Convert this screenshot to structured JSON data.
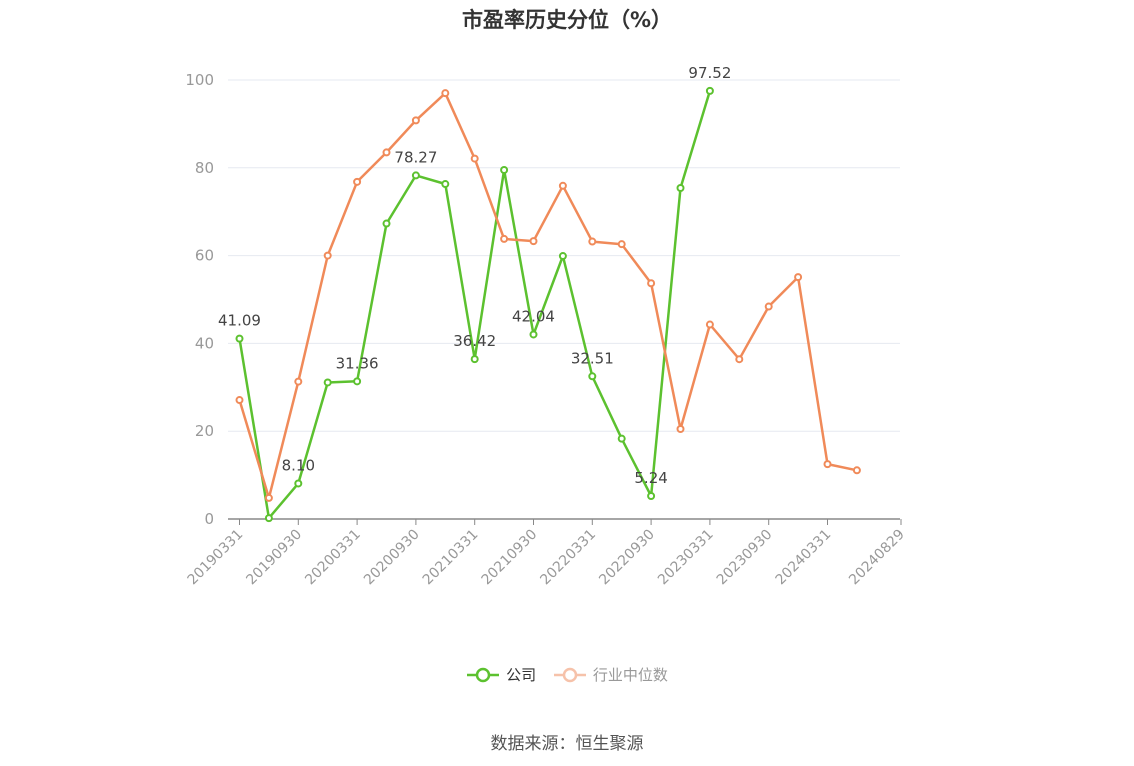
{
  "colors": {
    "company": "#5cc12f",
    "industry": "#f08a59",
    "axis": "#999999",
    "grid": "#e6e9f0"
  },
  "legend": {
    "company_label": "公司",
    "industry_label": "行业中位数"
  },
  "source": "数据来源：恒生聚源",
  "chart_data": {
    "type": "line",
    "title": "市盈率历史分位（%）",
    "xlabel": "",
    "ylabel": "",
    "ylim": [
      0,
      100
    ],
    "yticks": [
      0,
      20,
      40,
      60,
      80,
      100
    ],
    "grid": true,
    "legend_position": "bottom",
    "xtick_labels": [
      "20190331",
      "20190930",
      "20200331",
      "20200930",
      "20210331",
      "20210930",
      "20220331",
      "20220930",
      "20230331",
      "20230930",
      "20240331",
      "20240829"
    ],
    "x": [
      "20190331",
      "20190630",
      "20190930",
      "20191231",
      "20200331",
      "20200630",
      "20200930",
      "20201231",
      "20210331",
      "20210630",
      "20210930",
      "20211231",
      "20220331",
      "20220630",
      "20220930",
      "20221231",
      "20230331",
      "20230630",
      "20230930",
      "20231231",
      "20240331",
      "20240630"
    ],
    "series": [
      {
        "name": "公司",
        "values": [
          41.09,
          0.2,
          8.1,
          31.1,
          31.36,
          67.3,
          78.27,
          76.3,
          36.42,
          79.5,
          42.04,
          59.9,
          32.51,
          18.3,
          5.24,
          75.4,
          97.52,
          null,
          null,
          null,
          null,
          null
        ]
      },
      {
        "name": "行业中位数",
        "values": [
          27.1,
          4.8,
          31.3,
          60.0,
          76.8,
          83.5,
          90.8,
          97.0,
          82.1,
          63.8,
          63.3,
          75.9,
          63.2,
          62.6,
          53.7,
          20.5,
          44.3,
          36.4,
          48.4,
          55.1,
          12.5,
          11.1
        ]
      }
    ],
    "annotations": [
      {
        "series": "公司",
        "x": "20190331",
        "text": "41.09"
      },
      {
        "series": "公司",
        "x": "20190930",
        "text": "8.10"
      },
      {
        "series": "公司",
        "x": "20200331",
        "text": "31.36"
      },
      {
        "series": "公司",
        "x": "20200930",
        "text": "78.27"
      },
      {
        "series": "公司",
        "x": "20210331",
        "text": "36.42"
      },
      {
        "series": "公司",
        "x": "20210930",
        "text": "42.04"
      },
      {
        "series": "公司",
        "x": "20220331",
        "text": "32.51"
      },
      {
        "series": "公司",
        "x": "20220930",
        "text": "5.24"
      },
      {
        "series": "公司",
        "x": "20230331",
        "text": "97.52"
      }
    ]
  }
}
